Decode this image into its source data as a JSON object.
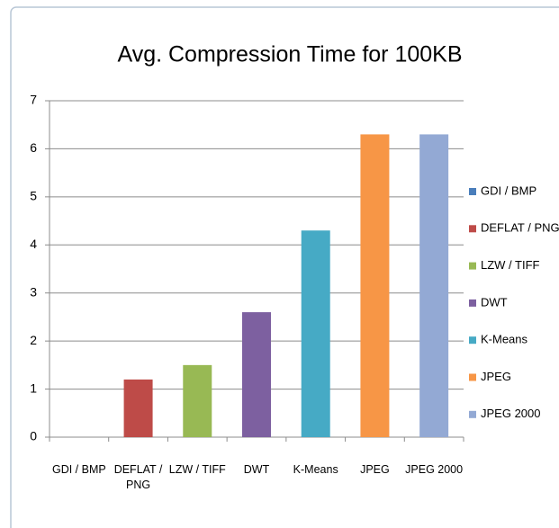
{
  "chart_data": {
    "type": "bar",
    "title": "Avg. Compression Time for 100KB",
    "categories": [
      "GDI / BMP",
      "DEFLAT / PNG",
      "LZW / TIFF",
      "DWT",
      "K-Means",
      "JPEG",
      "JPEG 2000"
    ],
    "values": [
      0,
      1.2,
      1.5,
      2.6,
      4.3,
      6.3,
      6.3
    ],
    "colors": [
      "#4a7ebb",
      "#be4b48",
      "#98b954",
      "#7d60a0",
      "#46aac5",
      "#f79646",
      "#93a9d4"
    ],
    "ylim": [
      0,
      7
    ],
    "yticks": [
      0,
      1,
      2,
      3,
      4,
      5,
      6,
      7
    ],
    "grid": true,
    "legend": "right"
  }
}
